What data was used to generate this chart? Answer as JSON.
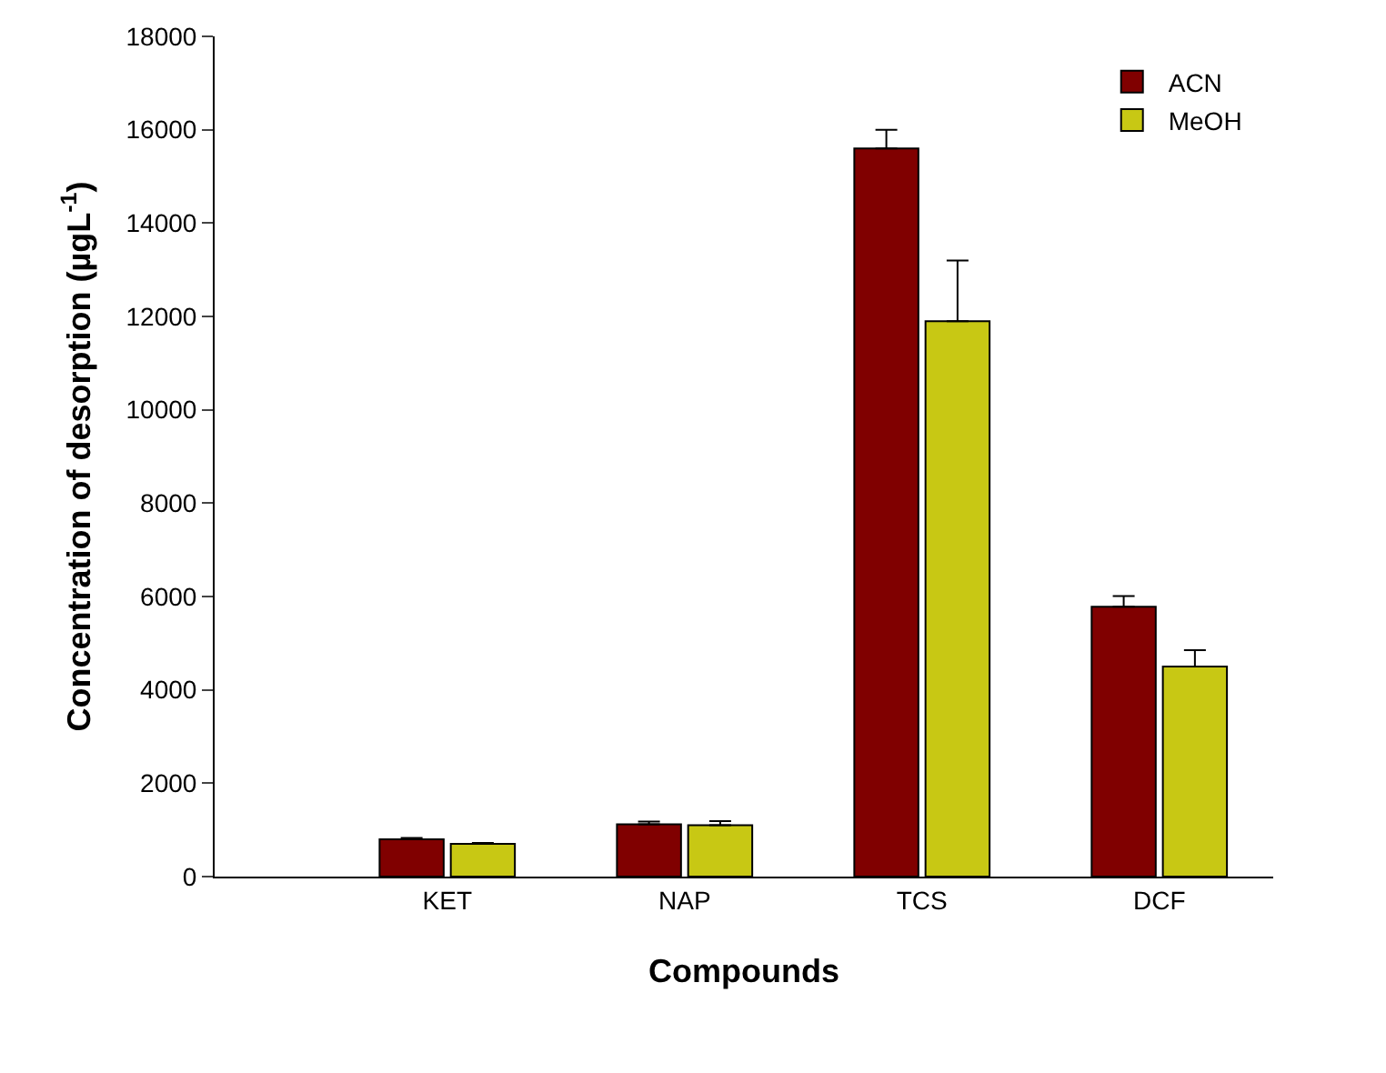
{
  "chart_data": {
    "type": "bar",
    "xlabel": "Compounds",
    "ylabel": "Concentration of desorption (µgL$^{-1}$)",
    "categories": [
      "KET",
      "NAP",
      "TCS",
      "DCF"
    ],
    "series": [
      {
        "name": "ACN",
        "color": "#800000",
        "values": [
          800,
          1120,
          15600,
          5780
        ],
        "errors": [
          [
            800,
            830
          ],
          [
            1120,
            1180
          ],
          [
            15600,
            16000
          ],
          [
            5780,
            6010
          ]
        ]
      },
      {
        "name": "MeOH",
        "color": "#c8c814",
        "values": [
          700,
          1100,
          11900,
          4500
        ],
        "errors": [
          [
            700,
            720
          ],
          [
            1100,
            1190
          ],
          [
            11900,
            13200
          ],
          [
            4500,
            4850
          ]
        ]
      }
    ],
    "ylim": [
      0,
      18000
    ],
    "yticks": [
      0,
      2000,
      4000,
      6000,
      8000,
      10000,
      12000,
      14000,
      16000,
      18000
    ],
    "grid": false,
    "legend": "top right"
  }
}
